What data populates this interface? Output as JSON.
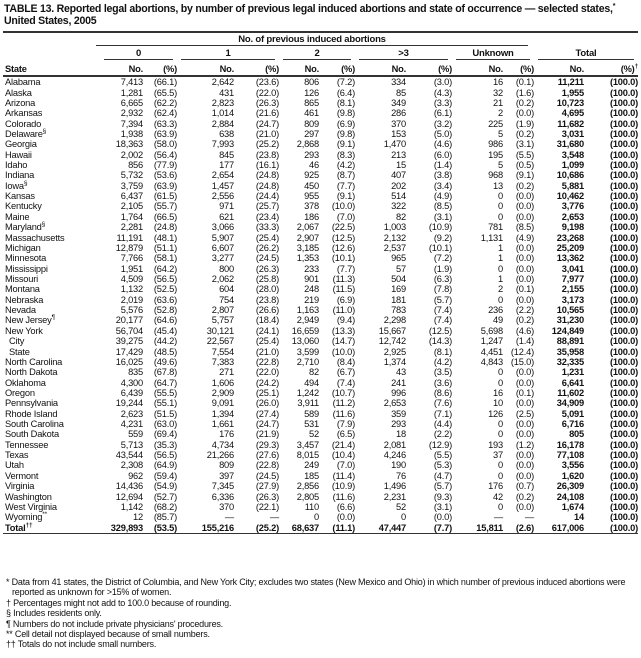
{
  "title": {
    "text": "TABLE 13. Reported legal abortions, by number of previous legal induced abortions and state of occurrence — selected states,",
    "sup": "*",
    "line2": "United States, 2005"
  },
  "header": {
    "span_label": "No. of previous induced abortions",
    "groups": [
      "0",
      "1",
      "2",
      ">3",
      "Unknown",
      "Total"
    ],
    "state_label": "State",
    "no_label": "No.",
    "pct_label": "(%)",
    "total_pct_sup": "†"
  },
  "rows": [
    [
      "Alabama",
      "",
      "7,413",
      "(66.1)",
      "2,642",
      "(23.6)",
      "806",
      "(7.2)",
      "334",
      "(3.0)",
      "16",
      "(0.1)",
      "11,211",
      "(100.0)"
    ],
    [
      "Alaska",
      "",
      "1,281",
      "(65.5)",
      "431",
      "(22.0)",
      "126",
      "(6.4)",
      "85",
      "(4.3)",
      "32",
      "(1.6)",
      "1,955",
      "(100.0)"
    ],
    [
      "Arizona",
      "",
      "6,665",
      "(62.2)",
      "2,823",
      "(26.3)",
      "865",
      "(8.1)",
      "349",
      "(3.3)",
      "21",
      "(0.2)",
      "10,723",
      "(100.0)"
    ],
    [
      "Arkansas",
      "",
      "2,932",
      "(62.4)",
      "1,014",
      "(21.6)",
      "461",
      "(9.8)",
      "286",
      "(6.1)",
      "2",
      "(0.0)",
      "4,695",
      "(100.0)"
    ],
    [
      "Colorado",
      "",
      "7,394",
      "(63.3)",
      "2,884",
      "(24.7)",
      "809",
      "(6.9)",
      "370",
      "(3.2)",
      "225",
      "(1.9)",
      "11,682",
      "(100.0)"
    ],
    [
      "Delaware",
      "§",
      "1,938",
      "(63.9)",
      "638",
      "(21.0)",
      "297",
      "(9.8)",
      "153",
      "(5.0)",
      "5",
      "(0.2)",
      "3,031",
      "(100.0)"
    ],
    [
      "Georgia",
      "",
      "18,363",
      "(58.0)",
      "7,993",
      "(25.2)",
      "2,868",
      "(9.1)",
      "1,470",
      "(4.6)",
      "986",
      "(3.1)",
      "31,680",
      "(100.0)"
    ],
    [
      "Hawaii",
      "",
      "2,002",
      "(56.4)",
      "845",
      "(23.8)",
      "293",
      "(8.3)",
      "213",
      "(6.0)",
      "195",
      "(5.5)",
      "3,548",
      "(100.0)"
    ],
    [
      "Idaho",
      "",
      "856",
      "(77.9)",
      "177",
      "(16.1)",
      "46",
      "(4.2)",
      "15",
      "(1.4)",
      "5",
      "(0.5)",
      "1,099",
      "(100.0)"
    ],
    [
      "Indiana",
      "",
      "5,732",
      "(53.6)",
      "2,654",
      "(24.8)",
      "925",
      "(8.7)",
      "407",
      "(3.8)",
      "968",
      "(9.1)",
      "10,686",
      "(100.0)"
    ],
    [
      "Iowa",
      "§",
      "3,759",
      "(63.9)",
      "1,457",
      "(24.8)",
      "450",
      "(7.7)",
      "202",
      "(3.4)",
      "13",
      "(0.2)",
      "5,881",
      "(100.0)"
    ],
    [
      "Kansas",
      "",
      "6,437",
      "(61.5)",
      "2,556",
      "(24.4)",
      "955",
      "(9.1)",
      "514",
      "(4.9)",
      "0",
      "(0.0)",
      "10,462",
      "(100.0)"
    ],
    [
      "Kentucky",
      "",
      "2,105",
      "(55.7)",
      "971",
      "(25.7)",
      "378",
      "(10.0)",
      "322",
      "(8.5)",
      "0",
      "(0.0)",
      "3,776",
      "(100.0)"
    ],
    [
      "Maine",
      "",
      "1,764",
      "(66.5)",
      "621",
      "(23.4)",
      "186",
      "(7.0)",
      "82",
      "(3.1)",
      "0",
      "(0.0)",
      "2,653",
      "(100.0)"
    ],
    [
      "Maryland",
      "§",
      "2,281",
      "(24.8)",
      "3,066",
      "(33.3)",
      "2,067",
      "(22.5)",
      "1,003",
      "(10.9)",
      "781",
      "(8.5)",
      "9,198",
      "(100.0)"
    ],
    [
      "Massachusetts",
      "",
      "11,191",
      "(48.1)",
      "5,907",
      "(25.4)",
      "2,907",
      "(12.5)",
      "2,132",
      "(9.2)",
      "1,131",
      "(4.9)",
      "23,268",
      "(100.0)"
    ],
    [
      "Michigan",
      "",
      "12,879",
      "(51.1)",
      "6,607",
      "(26.2)",
      "3,185",
      "(12.6)",
      "2,537",
      "(10.1)",
      "1",
      "(0.0)",
      "25,209",
      "(100.0)"
    ],
    [
      "Minnesota",
      "",
      "7,766",
      "(58.1)",
      "3,277",
      "(24.5)",
      "1,353",
      "(10.1)",
      "965",
      "(7.2)",
      "1",
      "(0.0)",
      "13,362",
      "(100.0)"
    ],
    [
      "Mississippi",
      "",
      "1,951",
      "(64.2)",
      "800",
      "(26.3)",
      "233",
      "(7.7)",
      "57",
      "(1.9)",
      "0",
      "(0.0)",
      "3,041",
      "(100.0)"
    ],
    [
      "Missouri",
      "",
      "4,509",
      "(56.5)",
      "2,062",
      "(25.8)",
      "901",
      "(11.3)",
      "504",
      "(6.3)",
      "1",
      "(0.0)",
      "7,977",
      "(100.0)"
    ],
    [
      "Montana",
      "",
      "1,132",
      "(52.5)",
      "604",
      "(28.0)",
      "248",
      "(11.5)",
      "169",
      "(7.8)",
      "2",
      "(0.1)",
      "2,155",
      "(100.0)"
    ],
    [
      "Nebraska",
      "",
      "2,019",
      "(63.6)",
      "754",
      "(23.8)",
      "219",
      "(6.9)",
      "181",
      "(5.7)",
      "0",
      "(0.0)",
      "3,173",
      "(100.0)"
    ],
    [
      "Nevada",
      "",
      "5,576",
      "(52.8)",
      "2,807",
      "(26.6)",
      "1,163",
      "(11.0)",
      "783",
      "(7.4)",
      "236",
      "(2.2)",
      "10,565",
      "(100.0)"
    ],
    [
      "New Jersey",
      "¶",
      "20,177",
      "(64.6)",
      "5,757",
      "(18.4)",
      "2,949",
      "(9.4)",
      "2,298",
      "(7.4)",
      "49",
      "(0.2)",
      "31,230",
      "(100.0)"
    ],
    [
      "New York",
      "",
      "56,704",
      "(45.4)",
      "30,121",
      "(24.1)",
      "16,659",
      "(13.3)",
      "15,667",
      "(12.5)",
      "5,698",
      "(4.6)",
      "124,849",
      "(100.0)"
    ],
    [
      "City",
      "",
      "39,275",
      "(44.2)",
      "22,567",
      "(25.4)",
      "13,060",
      "(14.7)",
      "12,742",
      "(14.3)",
      "1,247",
      "(1.4)",
      "88,891",
      "(100.0)"
    ],
    [
      "State",
      "",
      "17,429",
      "(48.5)",
      "7,554",
      "(21.0)",
      "3,599",
      "(10.0)",
      "2,925",
      "(8.1)",
      "4,451",
      "(12.4)",
      "35,958",
      "(100.0)"
    ],
    [
      "North Carolina",
      "",
      "16,025",
      "(49.6)",
      "7,383",
      "(22.8)",
      "2,710",
      "(8.4)",
      "1,374",
      "(4.2)",
      "4,843",
      "(15.0)",
      "32,335",
      "(100.0)"
    ],
    [
      "North Dakota",
      "",
      "835",
      "(67.8)",
      "271",
      "(22.0)",
      "82",
      "(6.7)",
      "43",
      "(3.5)",
      "0",
      "(0.0)",
      "1,231",
      "(100.0)"
    ],
    [
      "Oklahoma",
      "",
      "4,300",
      "(64.7)",
      "1,606",
      "(24.2)",
      "494",
      "(7.4)",
      "241",
      "(3.6)",
      "0",
      "(0.0)",
      "6,641",
      "(100.0)"
    ],
    [
      "Oregon",
      "",
      "6,439",
      "(55.5)",
      "2,909",
      "(25.1)",
      "1,242",
      "(10.7)",
      "996",
      "(8.6)",
      "16",
      "(0.1)",
      "11,602",
      "(100.0)"
    ],
    [
      "Pennsylvania",
      "",
      "19,244",
      "(55.1)",
      "9,091",
      "(26.0)",
      "3,911",
      "(11.2)",
      "2,653",
      "(7.6)",
      "10",
      "(0.0)",
      "34,909",
      "(100.0)"
    ],
    [
      "Rhode Island",
      "",
      "2,623",
      "(51.5)",
      "1,394",
      "(27.4)",
      "589",
      "(11.6)",
      "359",
      "(7.1)",
      "126",
      "(2.5)",
      "5,091",
      "(100.0)"
    ],
    [
      "South Carolina",
      "",
      "4,231",
      "(63.0)",
      "1,661",
      "(24.7)",
      "531",
      "(7.9)",
      "293",
      "(4.4)",
      "0",
      "(0.0)",
      "6,716",
      "(100.0)"
    ],
    [
      "South Dakota",
      "",
      "559",
      "(69.4)",
      "176",
      "(21.9)",
      "52",
      "(6.5)",
      "18",
      "(2.2)",
      "0",
      "(0.0)",
      "805",
      "(100.0)"
    ],
    [
      "Tennessee",
      "",
      "5,713",
      "(35.3)",
      "4,734",
      "(29.3)",
      "3,457",
      "(21.4)",
      "2,081",
      "(12.9)",
      "193",
      "(1.2)",
      "16,178",
      "(100.0)"
    ],
    [
      "Texas",
      "",
      "43,544",
      "(56.5)",
      "21,266",
      "(27.6)",
      "8,015",
      "(10.4)",
      "4,246",
      "(5.5)",
      "37",
      "(0.0)",
      "77,108",
      "(100.0)"
    ],
    [
      "Utah",
      "",
      "2,308",
      "(64.9)",
      "809",
      "(22.8)",
      "249",
      "(7.0)",
      "190",
      "(5.3)",
      "0",
      "(0.0)",
      "3,556",
      "(100.0)"
    ],
    [
      "Vermont",
      "",
      "962",
      "(59.4)",
      "397",
      "(24.5)",
      "185",
      "(11.4)",
      "76",
      "(4.7)",
      "0",
      "(0.0)",
      "1,620",
      "(100.0)"
    ],
    [
      "Virginia",
      "",
      "14,436",
      "(54.9)",
      "7,345",
      "(27.9)",
      "2,856",
      "(10.9)",
      "1,496",
      "(5.7)",
      "176",
      "(0.7)",
      "26,309",
      "(100.0)"
    ],
    [
      "Washington",
      "",
      "12,694",
      "(52.7)",
      "6,336",
      "(26.3)",
      "2,805",
      "(11.6)",
      "2,231",
      "(9.3)",
      "42",
      "(0.2)",
      "24,108",
      "(100.0)"
    ],
    [
      "West Virginia",
      "",
      "1,142",
      "(68.2)",
      "370",
      "(22.1)",
      "110",
      "(6.6)",
      "52",
      "(3.1)",
      "0",
      "(0.0)",
      "1,674",
      "(100.0)"
    ],
    [
      "Wyoming",
      "**",
      "12",
      "(85.7)",
      "—",
      "—",
      "0",
      "(0.0)",
      "0",
      "(0.0)",
      "—",
      "—",
      "14",
      "(100.0)"
    ]
  ],
  "total": [
    "Total",
    "††",
    "329,893",
    "(53.5)",
    "155,216",
    "(25.2)",
    "68,637",
    "(11.1)",
    "47,447",
    "(7.7)",
    "15,811",
    "(2.6)",
    "617,006",
    "(100.0)"
  ],
  "footnotes": [
    "* Data from 41 states, the District of Columbia, and New York City; excludes two states (New Mexico and Ohio) in which number of previous induced abortions were reported as unknown for >15% of women.",
    "† Percentages might not add to 100.0 because of rounding.",
    "§ Includes residents only.",
    "¶ Numbers do not include private physicians' procedures.",
    "** Cell detail not displayed because of small numbers.",
    "†† Totals do not include small numbers."
  ]
}
